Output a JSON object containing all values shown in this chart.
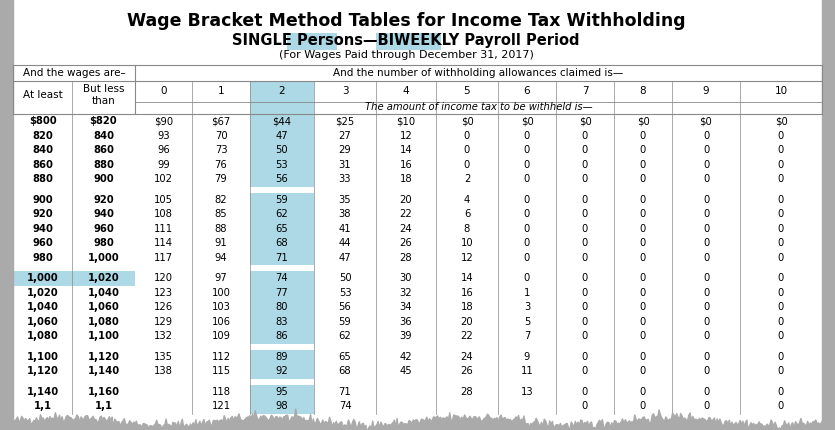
{
  "title": "Wage Bracket Method Tables for Income Tax Withholding",
  "subtitle2": "(For Wages Paid through December 31, 2017)",
  "col_header_wages1": "And the wages are–",
  "col_header_allow": "And the number of withholding allowances claimed is—",
  "col_atleast": "At least",
  "col_butless": "But less\nthan",
  "tax_label": "The amount of income tax to be withheld is—",
  "allowance_cols": [
    "0",
    "1",
    "2",
    "3",
    "4",
    "5",
    "6",
    "7",
    "8",
    "9",
    "10"
  ],
  "rows": [
    [
      "$800",
      "$820",
      "$90",
      "$67",
      "$44",
      "$25",
      "$10",
      "$0",
      "$0",
      "$0",
      "$0",
      "$0",
      "$0"
    ],
    [
      "820",
      "840",
      "93",
      "70",
      "47",
      "27",
      "12",
      "0",
      "0",
      "0",
      "0",
      "0",
      "0"
    ],
    [
      "840",
      "860",
      "96",
      "73",
      "50",
      "29",
      "14",
      "0",
      "0",
      "0",
      "0",
      "0",
      "0"
    ],
    [
      "860",
      "880",
      "99",
      "76",
      "53",
      "31",
      "16",
      "0",
      "0",
      "0",
      "0",
      "0",
      "0"
    ],
    [
      "880",
      "900",
      "102",
      "79",
      "56",
      "33",
      "18",
      "2",
      "0",
      "0",
      "0",
      "0",
      "0"
    ],
    [
      "900",
      "920",
      "105",
      "82",
      "59",
      "35",
      "20",
      "4",
      "0",
      "0",
      "0",
      "0",
      "0"
    ],
    [
      "920",
      "940",
      "108",
      "85",
      "62",
      "38",
      "22",
      "6",
      "0",
      "0",
      "0",
      "0",
      "0"
    ],
    [
      "940",
      "960",
      "111",
      "88",
      "65",
      "41",
      "24",
      "8",
      "0",
      "0",
      "0",
      "0",
      "0"
    ],
    [
      "960",
      "980",
      "114",
      "91",
      "68",
      "44",
      "26",
      "10",
      "0",
      "0",
      "0",
      "0",
      "0"
    ],
    [
      "980",
      "1,000",
      "117",
      "94",
      "71",
      "47",
      "28",
      "12",
      "0",
      "0",
      "0",
      "0",
      "0"
    ],
    [
      "1,000",
      "1,020",
      "120",
      "97",
      "74",
      "50",
      "30",
      "14",
      "0",
      "0",
      "0",
      "0",
      "0"
    ],
    [
      "1,020",
      "1,040",
      "123",
      "100",
      "77",
      "53",
      "32",
      "16",
      "1",
      "0",
      "0",
      "0",
      "0"
    ],
    [
      "1,040",
      "1,060",
      "126",
      "103",
      "80",
      "56",
      "34",
      "18",
      "3",
      "0",
      "0",
      "0",
      "0"
    ],
    [
      "1,060",
      "1,080",
      "129",
      "106",
      "83",
      "59",
      "36",
      "20",
      "5",
      "0",
      "0",
      "0",
      "0"
    ],
    [
      "1,080",
      "1,100",
      "132",
      "109",
      "86",
      "62",
      "39",
      "22",
      "7",
      "0",
      "0",
      "0",
      "0"
    ],
    [
      "1,100",
      "1,120",
      "135",
      "112",
      "89",
      "65",
      "42",
      "24",
      "9",
      "0",
      "0",
      "0",
      "0"
    ],
    [
      "1,120",
      "1,140",
      "138",
      "115",
      "92",
      "68",
      "45",
      "26",
      "11",
      "0",
      "0",
      "0",
      "0"
    ],
    [
      "1,140",
      "1,160",
      "",
      "118",
      "95",
      "71",
      "",
      "28",
      "13",
      "0",
      "0",
      "0",
      "0"
    ],
    [
      "1,1",
      "1,1",
      "",
      "121",
      "98",
      "74",
      "",
      "",
      "",
      "0",
      "0",
      "0",
      "0"
    ]
  ],
  "group_breaks_after": [
    4,
    9,
    14,
    16
  ],
  "highlight_color": "#ADD8E6",
  "bg_color": "#FFFFFF",
  "text_color": "#000000",
  "border_color": "#555555"
}
